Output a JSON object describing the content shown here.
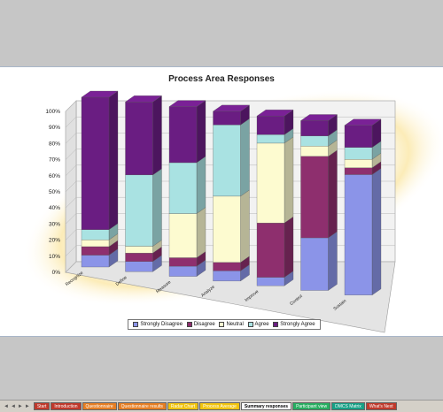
{
  "chart_data": {
    "type": "bar",
    "stacked": true,
    "title": "Process Area Responses",
    "categories": [
      "Recognize",
      "Define",
      "Measure",
      "Analyze",
      "Improve",
      "Control",
      "Sustain"
    ],
    "series": [
      {
        "name": "Strongly Disagree",
        "color": "#8b94e8",
        "values": [
          7,
          6,
          6,
          6,
          5,
          31,
          71
        ]
      },
      {
        "name": "Disagree",
        "color": "#8e2f6e",
        "values": [
          5,
          5,
          5,
          5,
          32,
          48,
          4
        ]
      },
      {
        "name": "Neutral",
        "color": "#fdfbd0",
        "values": [
          4,
          4,
          26,
          39,
          47,
          6,
          5
        ]
      },
      {
        "name": "Agree",
        "color": "#a9e2e2",
        "values": [
          6,
          42,
          30,
          42,
          5,
          6,
          7
        ]
      },
      {
        "name": "Strongly Agree",
        "color": "#6a1d82",
        "values": [
          78,
          43,
          33,
          8,
          11,
          9,
          13
        ]
      }
    ],
    "y_ticks": [
      "0%",
      "10%",
      "20%",
      "30%",
      "40%",
      "50%",
      "60%",
      "70%",
      "80%",
      "90%",
      "100%"
    ],
    "ylim": [
      0,
      100
    ],
    "grid": true,
    "legend": "bottom"
  },
  "sheet_tabs": {
    "nav_arrows": [
      "◄",
      "◄",
      "►",
      "►"
    ],
    "tabs": [
      {
        "label": "Start",
        "color": "#c0392b",
        "active": false
      },
      {
        "label": "Introduction",
        "color": "#c0392b",
        "active": false
      },
      {
        "label": "Questionnaire",
        "color": "#e67e22",
        "active": false
      },
      {
        "label": "Questionnaire results",
        "color": "#e67e22",
        "active": false
      },
      {
        "label": "Radar Chart",
        "color": "#f1c40f",
        "active": false
      },
      {
        "label": "Process Average",
        "color": "#f1c40f",
        "active": false
      },
      {
        "label": "Summary responses",
        "color": "#ffffff",
        "active": true
      },
      {
        "label": "Participant view",
        "color": "#27ae60",
        "active": false
      },
      {
        "label": "DMCS Matrix",
        "color": "#16a085",
        "active": false
      },
      {
        "label": "What's Next",
        "color": "#c0392b",
        "active": false
      }
    ]
  }
}
